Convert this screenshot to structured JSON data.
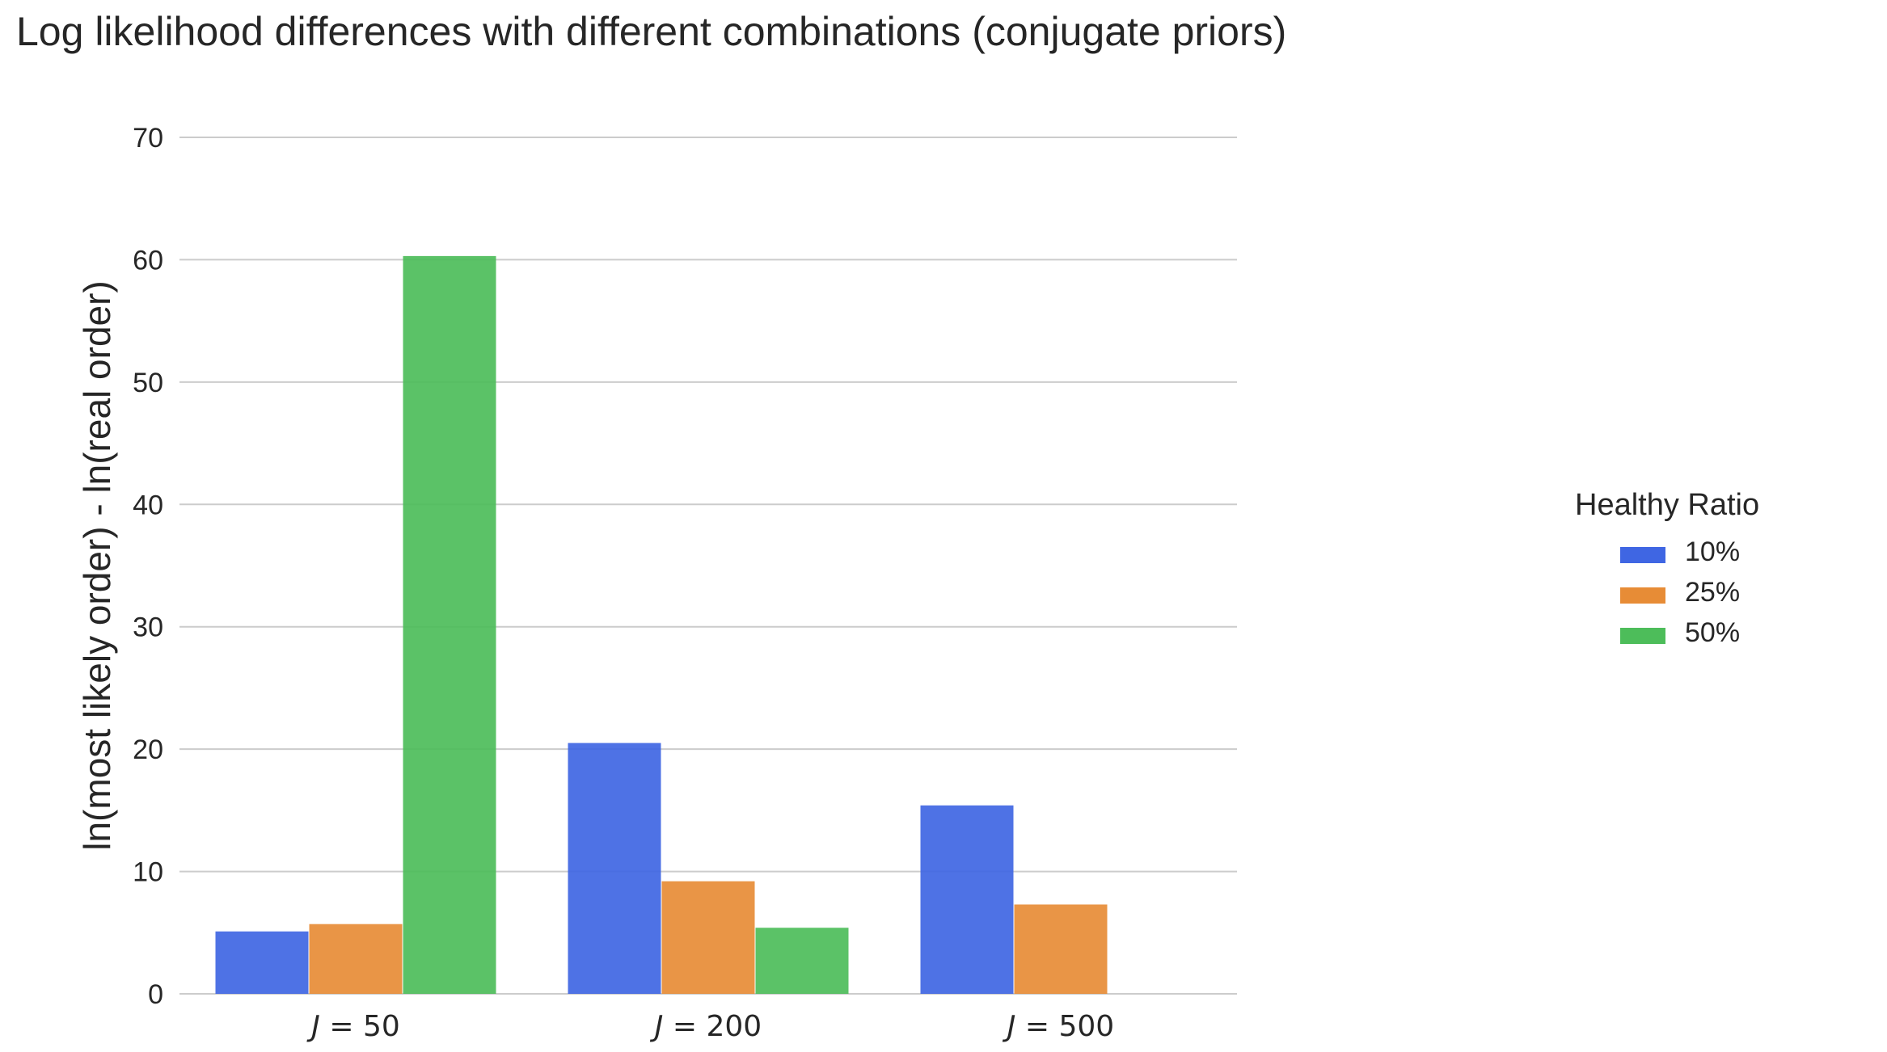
{
  "chart_data": {
    "type": "bar",
    "title": "Log likelihood differences with different combinations (conjugate priors)",
    "xlabel": "",
    "ylabel": "ln(most likely order) - ln(real order)",
    "categories": [
      "J = 50",
      "J = 200",
      "J = 500"
    ],
    "category_parts": [
      {
        "var": "J",
        "op": " = ",
        "num": "50"
      },
      {
        "var": "J",
        "op": " = ",
        "num": "200"
      },
      {
        "var": "J",
        "op": " = ",
        "num": "500"
      }
    ],
    "series": [
      {
        "name": "10%",
        "color": "#3f66e3",
        "values": [
          5.1,
          20.5,
          15.4
        ]
      },
      {
        "name": "25%",
        "color": "#e78c36",
        "values": [
          5.7,
          9.2,
          7.3
        ]
      },
      {
        "name": "50%",
        "color": "#4dbd5a",
        "values": [
          60.3,
          5.4,
          null
        ]
      }
    ],
    "ylim": [
      0,
      70
    ],
    "yticks": [
      "0",
      "10",
      "20",
      "30",
      "40",
      "50",
      "60",
      "70"
    ],
    "grid": true,
    "legend": {
      "title": "Healthy Ratio",
      "position": "right"
    }
  }
}
